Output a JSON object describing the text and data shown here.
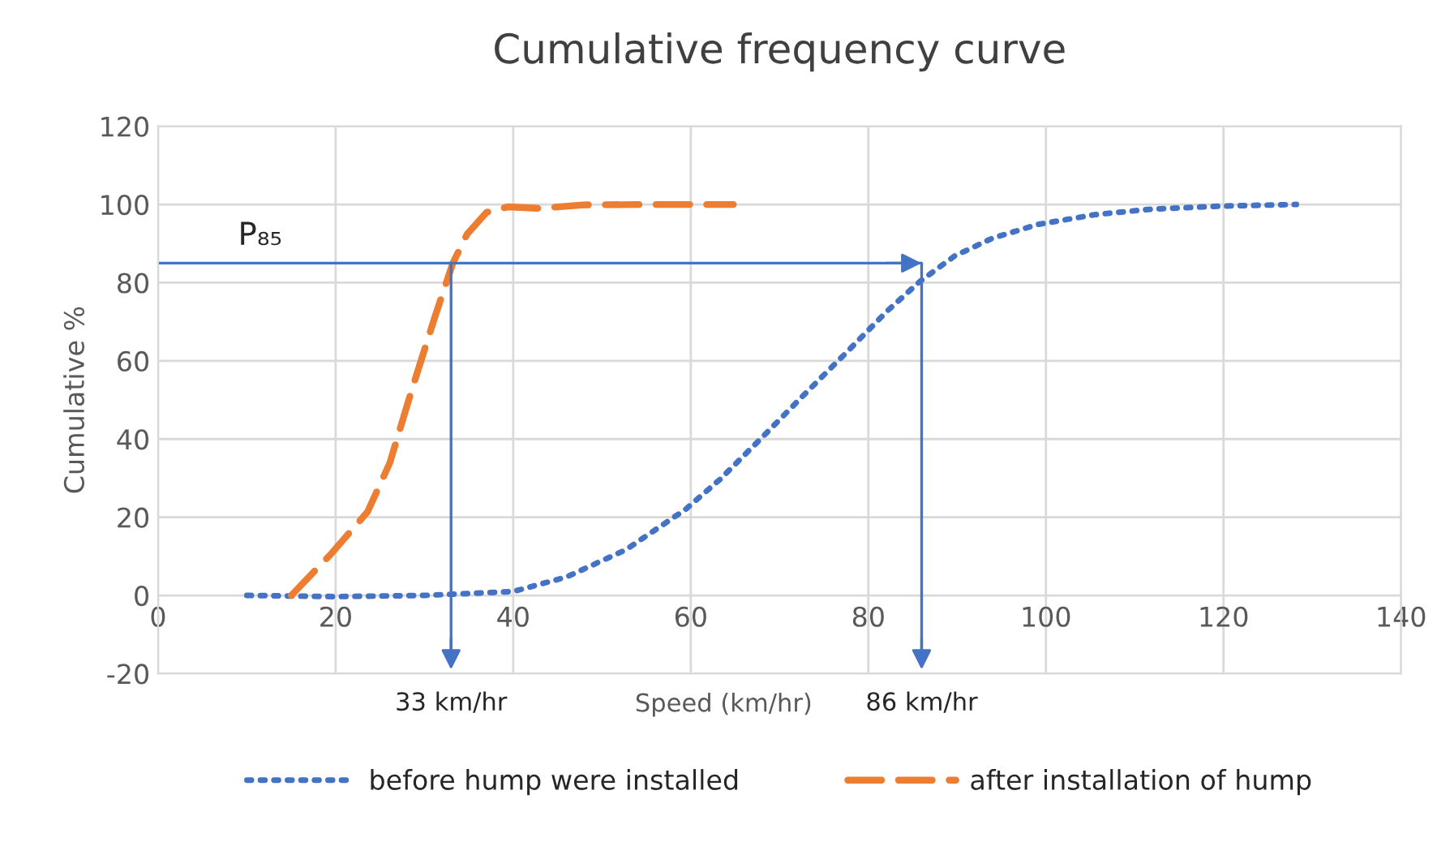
{
  "chart_data": {
    "type": "line",
    "title": "Cumulative frequency curve",
    "xlabel": "Speed (km/hr)",
    "ylabel": "Cumulative %",
    "xlim": [
      0,
      140
    ],
    "xticks": [
      0,
      20,
      40,
      60,
      80,
      100,
      120,
      140
    ],
    "ylim": [
      -20,
      120
    ],
    "yticks": [
      -20,
      0,
      20,
      40,
      60,
      80,
      100,
      120
    ],
    "grid": true,
    "legend": "bottom",
    "marker": "none",
    "series": [
      {
        "name": "before hump were installed",
        "color": "#4472c4",
        "line_style": "dotted",
        "x": [
          10,
          20,
          30,
          40,
          46,
          52.7,
          59.4,
          63.3,
          68.2,
          72.7,
          77.6,
          82.1,
          85.8,
          89.7,
          94,
          99.1,
          105.5,
          111.8,
          120,
          128.2
        ],
        "values": [
          0,
          -0.3,
          0,
          1,
          4.7,
          11.7,
          22,
          29.7,
          40.8,
          51.2,
          62.3,
          72.7,
          80.3,
          86.8,
          91.4,
          94.9,
          97.4,
          98.8,
          99.6,
          100
        ]
      },
      {
        "name": "after installation of hump",
        "color": "#ed7d31",
        "line_style": "dashed",
        "x": [
          15,
          19.4,
          23.6,
          26.1,
          28.5,
          31.2,
          33.2,
          34.8,
          37,
          39.4,
          43,
          47.9,
          55,
          64.8
        ],
        "values": [
          0,
          10.4,
          21.4,
          33.9,
          52,
          71.4,
          85,
          92.4,
          98,
          99.4,
          99,
          99.9,
          100,
          100
        ]
      }
    ],
    "ref_lines": [
      {
        "axis": "y",
        "value": 85,
        "label": "P₈₅",
        "color": "#4472c4"
      },
      {
        "axis": "x",
        "value": 33,
        "label": "33 km/hr",
        "color": "#4472c4"
      },
      {
        "axis": "x",
        "value": 86,
        "label": "86 km/hr",
        "color": "#4472c4"
      }
    ]
  }
}
